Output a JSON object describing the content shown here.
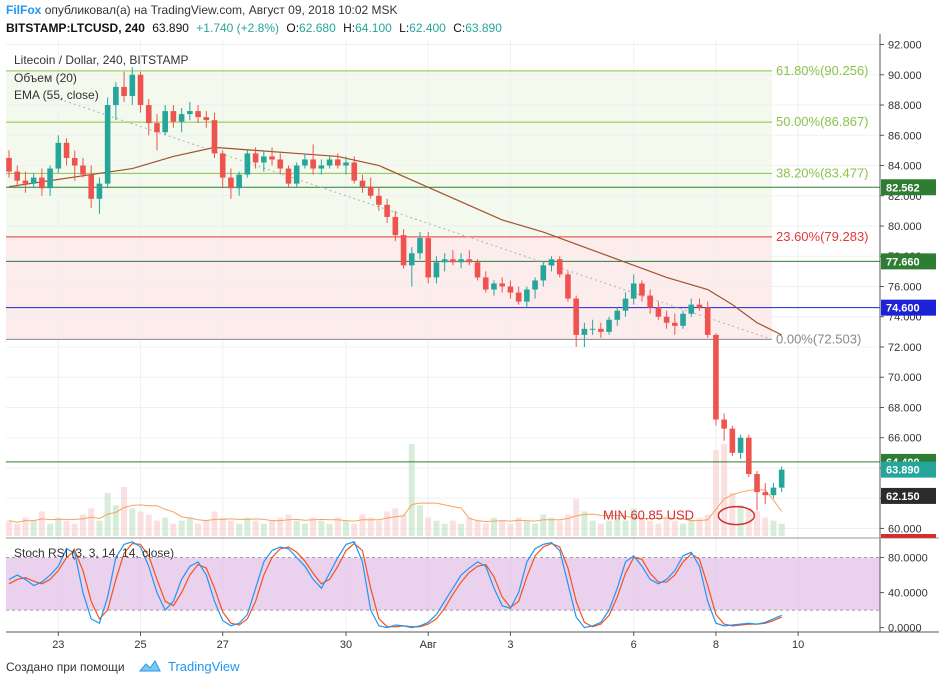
{
  "header": {
    "brand": "FilFox",
    "published_text": "опубликовал(а) на TradingView.com, Август 09, 2018 10:02 MSK",
    "symbol": "BITSTAMP:LTCUSD, 240",
    "price": "63.890",
    "change": "+1.740 (+2.8%)",
    "open_label": "O:",
    "open": "62.680",
    "high_label": "H:",
    "high": "64.100",
    "low_label": "L:",
    "low": "62.400",
    "close_label": "C:",
    "close": "63.890"
  },
  "legend": {
    "title": "Litecoin / Dollar, 240, BITSTAMP",
    "volume": "Объем (20)",
    "ema": "EMA (55, close)",
    "stoch": "Stoch RSI (3, 3, 14, 14, close)"
  },
  "footer": {
    "created_with": "Создано при помощи",
    "tradingview": "TradingView"
  },
  "colors": {
    "up": "#26a69a",
    "down": "#ef5350",
    "ema": "#a0522d",
    "fib_green": "#8bc34a",
    "fib_red": "#e53935",
    "level_blue": "#1e22d6",
    "level_green": "#2e7d32",
    "stoch_k": "#2196f3",
    "stoch_d": "#f4511e",
    "stoch_band": "#e1bee7"
  },
  "chart_data": {
    "type": "candlestick",
    "ylim": [
      59.5,
      92.3
    ],
    "y_ticks": [
      "92.000",
      "90.000",
      "88.000",
      "86.000",
      "84.000",
      "82.000",
      "80.000",
      "78.000",
      "76.000",
      "74.000",
      "72.000",
      "70.000",
      "68.000",
      "66.000",
      "64.000",
      "62.000",
      "60.000"
    ],
    "x_ticks": [
      {
        "label": "23",
        "bar": 6
      },
      {
        "label": "25",
        "bar": 16
      },
      {
        "label": "27",
        "bar": 26
      },
      {
        "label": "30",
        "bar": 41
      },
      {
        "label": "Авг",
        "bar": 51
      },
      {
        "label": "3",
        "bar": 61
      },
      {
        "label": "6",
        "bar": 76
      },
      {
        "label": "8",
        "bar": 86
      },
      {
        "label": "10",
        "bar": 96
      }
    ],
    "fib_levels": [
      {
        "label": "61.80%(90.256)",
        "value": 90.256,
        "color": "#8bc34a"
      },
      {
        "label": "50.00%(86.867)",
        "value": 86.867,
        "color": "#8bc34a"
      },
      {
        "label": "38.20%(83.477)",
        "value": 83.477,
        "color": "#8bc34a"
      },
      {
        "label": "23.60%(79.283)",
        "value": 79.283,
        "color": "#e53935"
      },
      {
        "label": "0.00%(72.503)",
        "value": 72.503,
        "color": "#888888"
      }
    ],
    "price_levels": [
      {
        "label": "82.562",
        "value": 82.562,
        "color": "#2e7d32"
      },
      {
        "label": "77.660",
        "value": 77.66,
        "color": "#2e7d32"
      },
      {
        "label": "74.600",
        "value": 74.6,
        "color": "#1e22d6"
      },
      {
        "label": "64.400",
        "value": 64.4,
        "color": "#2e7d32"
      }
    ],
    "last_price": {
      "label": "63.890",
      "value": 63.89
    },
    "extra_tags": [
      {
        "label": "62.150",
        "value": 62.15
      }
    ],
    "annotation": {
      "text": "MIN 60.85 USD",
      "value": 60.85,
      "bar": 88
    },
    "ohlc": [
      [
        84.5,
        85.0,
        83.2,
        83.6
      ],
      [
        83.6,
        84.0,
        82.6,
        83.0
      ],
      [
        83.0,
        83.6,
        82.2,
        82.8
      ],
      [
        82.8,
        83.5,
        82.5,
        83.2
      ],
      [
        83.2,
        83.8,
        82.0,
        82.5
      ],
      [
        82.5,
        84.0,
        82.0,
        83.8
      ],
      [
        83.8,
        86.0,
        83.5,
        85.5
      ],
      [
        85.5,
        85.8,
        84.0,
        84.5
      ],
      [
        84.5,
        85.0,
        83.0,
        84.0
      ],
      [
        84.0,
        84.5,
        83.2,
        83.4
      ],
      [
        83.4,
        84.0,
        81.2,
        81.8
      ],
      [
        81.8,
        83.2,
        80.8,
        82.8
      ],
      [
        82.8,
        88.5,
        82.5,
        88.0
      ],
      [
        88.0,
        89.5,
        87.0,
        89.2
      ],
      [
        89.2,
        90.2,
        88.2,
        88.6
      ],
      [
        88.6,
        90.5,
        88.0,
        90.0
      ],
      [
        90.0,
        90.2,
        87.5,
        88.0
      ],
      [
        88.0,
        88.4,
        86.0,
        86.8
      ],
      [
        86.8,
        87.4,
        85.0,
        86.2
      ],
      [
        86.2,
        88.0,
        86.0,
        87.6
      ],
      [
        87.6,
        88.0,
        86.5,
        86.9
      ],
      [
        86.9,
        87.8,
        86.2,
        87.4
      ],
      [
        87.4,
        88.2,
        87.0,
        87.6
      ],
      [
        87.6,
        88.0,
        86.8,
        87.2
      ],
      [
        87.2,
        87.6,
        86.5,
        87.0
      ],
      [
        87.0,
        87.5,
        84.5,
        84.8
      ],
      [
        84.8,
        85.0,
        82.5,
        83.2
      ],
      [
        83.2,
        83.8,
        81.8,
        82.5
      ],
      [
        82.5,
        83.6,
        82.0,
        83.4
      ],
      [
        83.4,
        85.0,
        83.2,
        84.8
      ],
      [
        84.8,
        85.2,
        83.8,
        84.2
      ],
      [
        84.2,
        85.0,
        83.6,
        84.6
      ],
      [
        84.6,
        85.2,
        84.0,
        84.4
      ],
      [
        84.4,
        84.8,
        83.4,
        83.8
      ],
      [
        83.8,
        84.0,
        82.6,
        82.8
      ],
      [
        82.8,
        84.2,
        82.6,
        84.0
      ],
      [
        84.0,
        84.8,
        83.8,
        84.4
      ],
      [
        84.4,
        85.4,
        83.4,
        83.8
      ],
      [
        83.8,
        84.4,
        83.4,
        84.0
      ],
      [
        84.0,
        84.6,
        83.8,
        84.4
      ],
      [
        84.4,
        84.8,
        83.8,
        84.0
      ],
      [
        84.0,
        84.6,
        83.4,
        84.2
      ],
      [
        84.2,
        84.6,
        82.8,
        83.0
      ],
      [
        83.0,
        83.4,
        82.2,
        82.6
      ],
      [
        82.6,
        83.2,
        81.8,
        82.0
      ],
      [
        82.0,
        82.6,
        81.0,
        81.4
      ],
      [
        81.4,
        81.8,
        80.2,
        80.6
      ],
      [
        80.6,
        81.0,
        79.0,
        79.4
      ],
      [
        79.4,
        79.8,
        77.2,
        77.4
      ],
      [
        77.4,
        78.6,
        76.0,
        78.2
      ],
      [
        78.2,
        79.6,
        77.8,
        79.2
      ],
      [
        79.2,
        79.6,
        76.2,
        76.6
      ],
      [
        76.6,
        78.0,
        76.2,
        77.6
      ],
      [
        77.6,
        78.2,
        77.0,
        77.8
      ],
      [
        77.8,
        78.4,
        77.4,
        77.6
      ],
      [
        77.6,
        78.2,
        77.2,
        77.8
      ],
      [
        77.8,
        78.4,
        77.4,
        77.6
      ],
      [
        77.6,
        77.8,
        76.4,
        76.6
      ],
      [
        76.6,
        77.0,
        75.6,
        75.8
      ],
      [
        75.8,
        76.4,
        75.4,
        76.2
      ],
      [
        76.2,
        76.6,
        75.6,
        76.0
      ],
      [
        76.0,
        76.4,
        75.2,
        75.6
      ],
      [
        75.6,
        76.0,
        74.8,
        75.0
      ],
      [
        75.0,
        76.0,
        74.6,
        75.8
      ],
      [
        75.8,
        76.6,
        75.2,
        76.4
      ],
      [
        76.4,
        77.6,
        76.0,
        77.4
      ],
      [
        77.4,
        78.0,
        77.0,
        77.8
      ],
      [
        77.8,
        78.0,
        76.6,
        76.8
      ],
      [
        76.8,
        77.0,
        75.0,
        75.2
      ],
      [
        75.2,
        75.4,
        72.0,
        72.8
      ],
      [
        72.8,
        73.6,
        72.0,
        73.2
      ],
      [
        73.2,
        73.8,
        72.8,
        73.2
      ],
      [
        73.2,
        73.6,
        72.6,
        73.0
      ],
      [
        73.0,
        74.0,
        72.8,
        73.8
      ],
      [
        73.8,
        74.6,
        73.4,
        74.4
      ],
      [
        74.4,
        75.6,
        74.0,
        75.2
      ],
      [
        75.2,
        76.8,
        74.8,
        76.2
      ],
      [
        76.2,
        76.4,
        75.0,
        75.4
      ],
      [
        75.4,
        75.8,
        74.2,
        74.6
      ],
      [
        74.6,
        75.0,
        73.8,
        74.0
      ],
      [
        74.0,
        74.4,
        73.2,
        73.6
      ],
      [
        73.6,
        74.2,
        72.8,
        73.4
      ],
      [
        73.4,
        74.4,
        73.2,
        74.2
      ],
      [
        74.2,
        75.2,
        74.0,
        74.8
      ],
      [
        74.8,
        75.2,
        74.4,
        74.6
      ],
      [
        74.6,
        75.0,
        72.6,
        72.8
      ],
      [
        72.8,
        72.9,
        66.8,
        67.2
      ],
      [
        67.2,
        67.6,
        65.8,
        66.6
      ],
      [
        66.6,
        66.8,
        64.8,
        65.0
      ],
      [
        65.0,
        66.2,
        64.6,
        66.0
      ],
      [
        66.0,
        66.2,
        63.4,
        63.6
      ],
      [
        63.6,
        63.8,
        61.2,
        62.4
      ],
      [
        62.4,
        63.0,
        61.6,
        62.2
      ],
      [
        62.2,
        63.0,
        62.0,
        62.7
      ],
      [
        62.7,
        64.1,
        62.4,
        63.89
      ]
    ],
    "ema_55": [
      [
        0,
        82.6
      ],
      [
        5,
        83.0
      ],
      [
        10,
        83.4
      ],
      [
        15,
        83.8
      ],
      [
        20,
        84.6
      ],
      [
        25,
        85.2
      ],
      [
        30,
        85.0
      ],
      [
        35,
        84.8
      ],
      [
        40,
        84.6
      ],
      [
        45,
        84.0
      ],
      [
        50,
        82.8
      ],
      [
        55,
        81.6
      ],
      [
        60,
        80.4
      ],
      [
        65,
        79.6
      ],
      [
        70,
        78.6
      ],
      [
        75,
        77.6
      ],
      [
        80,
        76.6
      ],
      [
        85,
        75.8
      ],
      [
        88,
        74.8
      ],
      [
        91,
        73.6
      ],
      [
        94,
        72.8
      ]
    ],
    "stoch_rsi": {
      "ylim": [
        -5,
        100
      ],
      "ticks": [
        "80.0000",
        "40.0000",
        "0.0000"
      ],
      "band": [
        20,
        80
      ],
      "k": [
        55,
        60,
        55,
        48,
        52,
        60,
        70,
        90,
        85,
        40,
        10,
        5,
        35,
        80,
        95,
        98,
        92,
        70,
        40,
        20,
        30,
        55,
        70,
        75,
        60,
        30,
        8,
        2,
        5,
        15,
        45,
        75,
        88,
        92,
        90,
        80,
        70,
        55,
        45,
        62,
        80,
        95,
        98,
        75,
        20,
        2,
        0,
        3,
        2,
        0,
        2,
        6,
        15,
        30,
        45,
        60,
        68,
        75,
        70,
        45,
        25,
        22,
        40,
        75,
        90,
        95,
        97,
        88,
        50,
        12,
        0,
        2,
        6,
        20,
        45,
        75,
        82,
        70,
        55,
        50,
        55,
        65,
        82,
        86,
        70,
        30,
        5,
        2,
        3,
        4,
        5,
        4,
        6,
        10,
        14
      ],
      "d": [
        50,
        55,
        57,
        53,
        50,
        55,
        65,
        80,
        88,
        65,
        30,
        10,
        20,
        55,
        85,
        96,
        95,
        82,
        55,
        30,
        25,
        40,
        60,
        72,
        68,
        45,
        18,
        5,
        3,
        10,
        30,
        60,
        80,
        90,
        92,
        86,
        76,
        62,
        50,
        55,
        70,
        88,
        96,
        88,
        45,
        10,
        1,
        1,
        2,
        1,
        1,
        4,
        10,
        22,
        38,
        52,
        63,
        70,
        72,
        58,
        35,
        23,
        30,
        58,
        82,
        92,
        96,
        92,
        68,
        30,
        6,
        1,
        4,
        14,
        35,
        62,
        80,
        78,
        62,
        52,
        52,
        60,
        75,
        84,
        78,
        48,
        15,
        4,
        2,
        3,
        4,
        4,
        5,
        8,
        12
      ]
    },
    "volume": [
      5,
      4,
      6,
      5,
      8,
      4,
      6,
      5,
      4,
      7,
      9,
      5,
      14,
      10,
      16,
      9,
      8,
      7,
      5,
      6,
      4,
      5,
      6,
      4,
      5,
      8,
      6,
      5,
      4,
      6,
      5,
      4,
      5,
      6,
      7,
      5,
      4,
      6,
      5,
      4,
      6,
      5,
      4,
      7,
      6,
      5,
      8,
      9,
      7,
      30,
      10,
      6,
      5,
      4,
      5,
      4,
      6,
      5,
      4,
      6,
      5,
      4,
      6,
      5,
      4,
      7,
      6,
      5,
      7,
      12,
      8,
      5,
      4,
      5,
      6,
      5,
      9,
      6,
      5,
      4,
      6,
      5,
      4,
      5,
      6,
      7,
      28,
      30,
      14,
      10,
      9,
      8,
      6,
      5,
      4
    ]
  }
}
